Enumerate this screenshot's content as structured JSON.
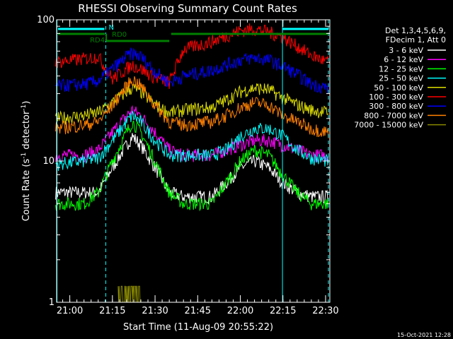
{
  "chart_data": {
    "type": "line",
    "title": "RHESSI Observing Summary Count Rates",
    "xlabel": "Start Time (11-Aug-09 20:55:22)",
    "ylabel": "Count Rate (s⁻¹ detector⁻¹)",
    "y_scale": "log",
    "ylim": [
      1,
      100
    ],
    "xlim": [
      "20:55:22",
      "22:31:30"
    ],
    "x_ticks": [
      "21:00",
      "21:15",
      "21:30",
      "21:45",
      "22:00",
      "22:15",
      "22:30"
    ],
    "y_ticks": [
      "1",
      "10",
      "100"
    ],
    "grid": false,
    "legend_position": "right",
    "legend_header": [
      "Det 1,3,4,5,6,9,",
      "FDecim 1, Att 0"
    ],
    "series": [
      {
        "name": "3 - 6 keV",
        "color": "#ffffff",
        "x": [
          "20:55",
          "21:05",
          "21:10",
          "21:15",
          "21:20",
          "21:22",
          "21:25",
          "21:30",
          "21:35",
          "21:40",
          "21:50",
          "21:55",
          "22:00",
          "22:05",
          "22:10",
          "22:15",
          "22:20",
          "22:25",
          "22:31"
        ],
        "y": [
          6,
          6,
          6,
          9,
          13,
          15,
          13,
          9,
          6,
          5.6,
          5.6,
          7,
          9,
          10,
          9,
          7,
          6,
          5.6,
          5.6
        ]
      },
      {
        "name": "6 - 12 keV",
        "color": "#ff00ff",
        "x": [
          "20:55",
          "21:05",
          "21:10",
          "21:15",
          "21:20",
          "21:22",
          "21:25",
          "21:30",
          "21:35",
          "21:40",
          "21:50",
          "21:55",
          "22:00",
          "22:05",
          "22:10",
          "22:15",
          "22:20",
          "22:25",
          "22:31"
        ],
        "y": [
          11,
          11,
          12,
          16,
          21,
          23,
          21,
          16,
          12,
          11,
          11,
          12,
          13,
          14,
          14,
          13,
          12,
          11,
          11
        ]
      },
      {
        "name": "12 - 25 keV",
        "color": "#00ff00",
        "x": [
          "20:55",
          "21:05",
          "21:10",
          "21:15",
          "21:20",
          "21:22",
          "21:25",
          "21:30",
          "21:35",
          "21:40",
          "21:50",
          "21:55",
          "22:00",
          "22:05",
          "22:10",
          "22:15",
          "22:20",
          "22:25",
          "22:31"
        ],
        "y": [
          5,
          5,
          6,
          10,
          16,
          19,
          16,
          10,
          6,
          5,
          5,
          7,
          10,
          12,
          11,
          8,
          6,
          5,
          5
        ]
      },
      {
        "name": "25 - 50 keV",
        "color": "#00ffff",
        "x": [
          "20:55",
          "21:05",
          "21:10",
          "21:15",
          "21:20",
          "21:22",
          "21:25",
          "21:30",
          "21:35",
          "21:40",
          "21:50",
          "21:55",
          "22:00",
          "22:05",
          "22:10",
          "22:15",
          "22:20",
          "22:25",
          "22:31"
        ],
        "y": [
          9.5,
          10,
          10.5,
          14,
          19,
          21,
          19,
          14,
          11,
          11,
          11,
          12,
          15,
          17,
          17,
          15,
          12,
          10.5,
          10
        ]
      },
      {
        "name": "50 - 100 keV",
        "color": "#dddd00",
        "x": [
          "20:55",
          "21:05",
          "21:10",
          "21:15",
          "21:20",
          "21:22",
          "21:25",
          "21:30",
          "21:35",
          "21:40",
          "21:50",
          "21:55",
          "22:00",
          "22:05",
          "22:10",
          "22:15",
          "22:20",
          "22:25",
          "22:31"
        ],
        "y": [
          20,
          21,
          22,
          26,
          31,
          33,
          31,
          25,
          22,
          23,
          24,
          27,
          31,
          33,
          32,
          28,
          25,
          23,
          22
        ]
      },
      {
        "name": "100 - 300 keV",
        "color": "#ff0000",
        "x": [
          "20:55",
          "21:05",
          "21:10",
          "21:15",
          "21:20",
          "21:22",
          "21:25",
          "21:30",
          "21:35",
          "21:40",
          "21:50",
          "21:55",
          "22:00",
          "22:05",
          "22:10",
          "22:15",
          "22:20",
          "22:25",
          "22:31"
        ],
        "y": [
          50,
          53,
          55,
          38,
          45,
          48,
          45,
          39,
          36,
          62,
          70,
          77,
          84,
          86,
          82,
          75,
          65,
          56,
          50
        ]
      },
      {
        "name": "300 - 800 keV",
        "color": "#0000ff",
        "x": [
          "20:55",
          "21:05",
          "21:10",
          "21:15",
          "21:20",
          "21:22",
          "21:25",
          "21:30",
          "21:35",
          "21:40",
          "21:50",
          "21:55",
          "22:00",
          "22:05",
          "22:10",
          "22:15",
          "22:20",
          "22:25",
          "22:31"
        ],
        "y": [
          34,
          35,
          37,
          45,
          55,
          58,
          55,
          43,
          36,
          40,
          44,
          48,
          52,
          54,
          52,
          47,
          41,
          35,
          33
        ]
      },
      {
        "name": "800 - 7000 keV",
        "color": "#ff8000",
        "x": [
          "20:55",
          "21:05",
          "21:10",
          "21:15",
          "21:20",
          "21:22",
          "21:25",
          "21:30",
          "21:35",
          "21:40",
          "21:50",
          "21:55",
          "22:00",
          "22:05",
          "22:10",
          "22:15",
          "22:20",
          "22:25",
          "22:31"
        ],
        "y": [
          17,
          18,
          19,
          25,
          34,
          38,
          34,
          25,
          19,
          18,
          19,
          21,
          24,
          26,
          25,
          21,
          19,
          17,
          16
        ]
      },
      {
        "name": "7000 - 15000 keV",
        "color": "#888800",
        "x": [
          "21:17",
          "21:18",
          "21:19",
          "21:20",
          "21:21",
          "21:22",
          "21:23",
          "21:24",
          "21:25"
        ],
        "y": [
          1.3,
          1.1,
          1.3,
          1.1,
          1.3,
          1.3,
          1.1,
          1.3,
          1.1
        ]
      }
    ],
    "annotations": [
      {
        "label": "N",
        "color": "#00ffff"
      },
      {
        "label": "RD4",
        "color": "#008000"
      },
      {
        "label": "RD0",
        "color": "#008000"
      }
    ],
    "footer_timestamp": "15-Oct-2021 12:28"
  }
}
